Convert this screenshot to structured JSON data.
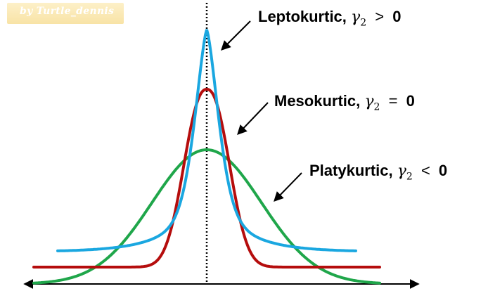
{
  "watermark": "by Turtle_dennis",
  "labels": {
    "leptokurtic": {
      "name": "Leptokurtic,",
      "symbol": "γ",
      "subscript": "2",
      "relation": ">",
      "value": "0"
    },
    "mesokurtic": {
      "name": "Mesokurtic,",
      "symbol": "γ",
      "subscript": "2",
      "relation": "=",
      "value": "0"
    },
    "platykurtic": {
      "name": "Platykurtic,",
      "symbol": "γ",
      "subscript": "2",
      "relation": "<",
      "value": "0"
    }
  },
  "colors": {
    "leptokurtic": "#1aa7e0",
    "mesokurtic": "#b50d0d",
    "platykurtic": "#1fa64a",
    "axis": "#000000"
  }
}
